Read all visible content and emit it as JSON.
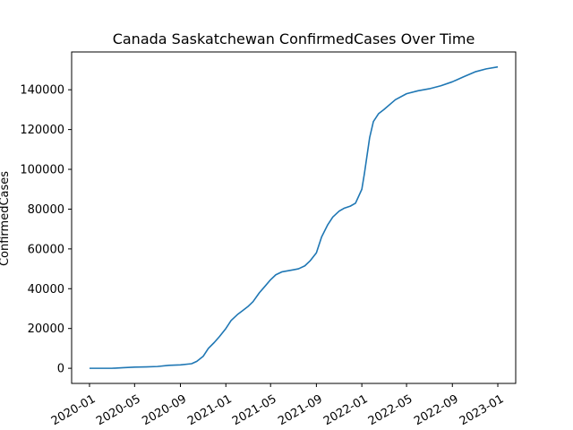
{
  "chart_data": {
    "type": "line",
    "title": "Canada Saskatchewan ConfirmedCases Over Time",
    "xlabel": "",
    "ylabel": "ConfirmedCases",
    "xlim": [
      "2019-11-14",
      "2023-02-18"
    ],
    "ylim": [
      -7600,
      159000
    ],
    "x_ticks": [
      "2020-01",
      "2020-05",
      "2020-09",
      "2021-01",
      "2021-05",
      "2021-09",
      "2022-01",
      "2022-05",
      "2022-09",
      "2023-01"
    ],
    "y_ticks": [
      0,
      20000,
      40000,
      60000,
      80000,
      100000,
      120000,
      140000
    ],
    "grid": false,
    "series": [
      {
        "color": "#1f77b4",
        "points": [
          [
            "2020-01-01",
            0
          ],
          [
            "2020-03-01",
            0
          ],
          [
            "2020-04-01",
            300
          ],
          [
            "2020-05-01",
            600
          ],
          [
            "2020-06-01",
            700
          ],
          [
            "2020-07-01",
            900
          ],
          [
            "2020-08-01",
            1500
          ],
          [
            "2020-09-01",
            1700
          ],
          [
            "2020-10-01",
            2300
          ],
          [
            "2020-10-15",
            3500
          ],
          [
            "2020-11-01",
            6000
          ],
          [
            "2020-11-15",
            10000
          ],
          [
            "2020-12-01",
            13000
          ],
          [
            "2020-12-15",
            16000
          ],
          [
            "2021-01-01",
            20000
          ],
          [
            "2021-01-15",
            24000
          ],
          [
            "2021-02-01",
            27000
          ],
          [
            "2021-02-15",
            29000
          ],
          [
            "2021-03-01",
            31000
          ],
          [
            "2021-03-15",
            33500
          ],
          [
            "2021-04-01",
            38000
          ],
          [
            "2021-04-15",
            41000
          ],
          [
            "2021-05-01",
            44500
          ],
          [
            "2021-05-15",
            47000
          ],
          [
            "2021-06-01",
            48500
          ],
          [
            "2021-07-01",
            49500
          ],
          [
            "2021-07-15",
            50000
          ],
          [
            "2021-08-01",
            51500
          ],
          [
            "2021-08-15",
            54000
          ],
          [
            "2021-09-01",
            58000
          ],
          [
            "2021-09-15",
            66000
          ],
          [
            "2021-10-01",
            72000
          ],
          [
            "2021-10-15",
            76000
          ],
          [
            "2021-11-01",
            79000
          ],
          [
            "2021-11-15",
            80500
          ],
          [
            "2021-12-01",
            81500
          ],
          [
            "2021-12-15",
            83000
          ],
          [
            "2022-01-01",
            90000
          ],
          [
            "2022-01-08",
            98000
          ],
          [
            "2022-01-15",
            107000
          ],
          [
            "2022-01-22",
            116000
          ],
          [
            "2022-02-01",
            124000
          ],
          [
            "2022-02-15",
            128000
          ],
          [
            "2022-03-01",
            130000
          ],
          [
            "2022-04-01",
            135000
          ],
          [
            "2022-05-01",
            138000
          ],
          [
            "2022-06-01",
            139500
          ],
          [
            "2022-07-01",
            140500
          ],
          [
            "2022-08-01",
            142000
          ],
          [
            "2022-09-01",
            144000
          ],
          [
            "2022-10-01",
            146500
          ],
          [
            "2022-11-01",
            149000
          ],
          [
            "2022-12-01",
            150500
          ],
          [
            "2023-01-01",
            151500
          ]
        ]
      }
    ]
  }
}
